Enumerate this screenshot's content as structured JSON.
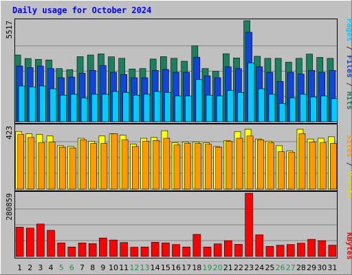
{
  "chart_data": {
    "type": "bar",
    "title": "Daily usage for October 2024",
    "categories": [
      "1",
      "2",
      "3",
      "4",
      "5",
      "6",
      "7",
      "8",
      "9",
      "10",
      "11",
      "12",
      "13",
      "14",
      "15",
      "16",
      "17",
      "18",
      "19",
      "20",
      "21",
      "22",
      "23",
      "24",
      "25",
      "26",
      "27",
      "28",
      "29",
      "30",
      "31"
    ],
    "weekend_days": [
      "5",
      "6",
      "12",
      "13",
      "19",
      "20",
      "26",
      "27"
    ],
    "panels": [
      {
        "id": "pages-files-hits",
        "y_max_label": "5517",
        "ylim": [
          0,
          5517
        ],
        "series": [
          {
            "name": "Hits",
            "color": "#1a8060",
            "values": [
              3640,
              3450,
              3400,
              3370,
              2900,
              2840,
              3550,
              3640,
              3700,
              3540,
              3460,
              2880,
              2900,
              3420,
              3550,
              3460,
              3300,
              4140,
              2900,
              2750,
              3710,
              3480,
              5517,
              3570,
              3460,
              3460,
              3250,
              3460,
              3690,
              3510,
              3460
            ]
          },
          {
            "name": "Files",
            "color": "#1144dd",
            "values": [
              3040,
              2950,
              3040,
              2900,
              2400,
              2440,
              2650,
              2800,
              3070,
              2700,
              2580,
              2400,
              2400,
              2800,
              2850,
              2700,
              2700,
              3520,
              2500,
              2400,
              3000,
              2900,
              4880,
              3000,
              2700,
              2200,
              2700,
              2600,
              2800,
              2700,
              2800
            ]
          },
          {
            "name": "Pages",
            "color": "#00ccff",
            "values": [
              1950,
              1900,
              1950,
              1800,
              1450,
              1500,
              1300,
              1500,
              1500,
              1650,
              1600,
              1450,
              1500,
              1650,
              1600,
              1400,
              1400,
              2300,
              1450,
              1400,
              1700,
              1600,
              3200,
              1800,
              1500,
              1000,
              1300,
              1500,
              1350,
              1400,
              1250
            ]
          }
        ]
      },
      {
        "id": "visits-sites",
        "y_max_label": "423",
        "ylim": [
          0,
          423
        ],
        "series": [
          {
            "name": "Visits",
            "color": "#ffff00",
            "values": [
              385,
              370,
              365,
              355,
              290,
              285,
              340,
              320,
              355,
              370,
              360,
              300,
              340,
              345,
              390,
              310,
              315,
              315,
              310,
              285,
              325,
              385,
              400,
              335,
              320,
              290,
              255,
              400,
              335,
              340,
              350
            ]
          },
          {
            "name": "Sites",
            "color": "#ff9900",
            "values": [
              365,
              345,
              310,
              315,
              280,
              275,
              330,
              305,
              305,
              370,
              330,
              285,
              320,
              325,
              340,
              295,
              305,
              305,
              300,
              280,
              320,
              340,
              355,
              330,
              310,
              250,
              245,
              370,
              315,
              310,
              305
            ]
          }
        ]
      },
      {
        "id": "kbytes",
        "y_max_label": "280859",
        "ylim": [
          0,
          280859
        ],
        "series": [
          {
            "name": "KBytes",
            "color": "#ff0000",
            "values": [
              130000,
              126000,
              144000,
              116000,
              60000,
              42000,
              60000,
              57000,
              82000,
              73000,
              62000,
              41000,
              42000,
              63000,
              60000,
              53000,
              42000,
              98000,
              42000,
              56000,
              70000,
              54000,
              280859,
              96000,
              45000,
              50000,
              53000,
              59000,
              76000,
              70000,
              50000
            ]
          }
        ]
      }
    ],
    "legend": [
      {
        "text": "Pages",
        "color": "#00ccff"
      },
      {
        "text": " / ",
        "color": "#333333"
      },
      {
        "text": "Files",
        "color": "#1144dd"
      },
      {
        "text": " / ",
        "color": "#333333"
      },
      {
        "text": "Hits",
        "color": "#1a8060"
      }
    ],
    "legend2": [
      {
        "text": "Sites",
        "color": "#ff9900"
      },
      {
        "text": " / ",
        "color": "#333333"
      },
      {
        "text": "Visits",
        "color": "#dddd00"
      }
    ],
    "legend3": [
      {
        "text": "KBytes",
        "color": "#ff0000"
      }
    ],
    "grid": true,
    "legend_placement": "right"
  }
}
